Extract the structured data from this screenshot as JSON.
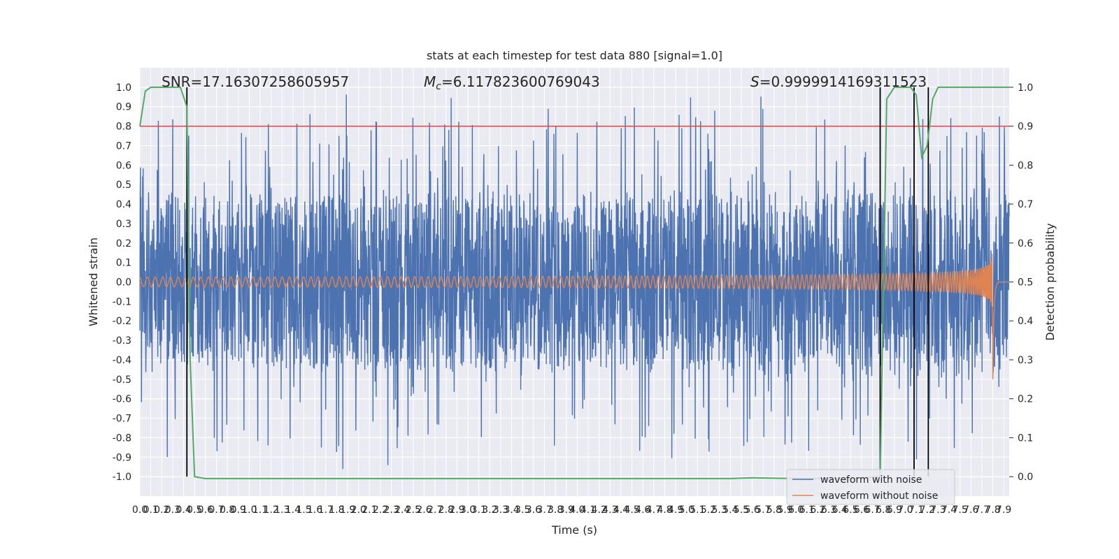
{
  "chart_data": {
    "type": "line",
    "title": "stats at each timestep for test data 880 [signal=1.0]",
    "xlabel": "Time (s)",
    "ylabel_left": "Whitened strain",
    "ylabel_right": "Detection probability",
    "xlim": [
      0.0,
      7.95
    ],
    "ylim_left": [
      -1.1,
      1.1
    ],
    "ylim_right": [
      -0.05,
      1.05
    ],
    "x_ticks": [
      "0.0",
      "0.1",
      "0.2",
      "0.3",
      "0.4",
      "0.5",
      "0.6",
      "0.7",
      "0.8",
      "0.9",
      "1.0",
      "1.1",
      "1.2",
      "1.3",
      "1.4",
      "1.5",
      "1.6",
      "1.7",
      "1.8",
      "1.9",
      "2.0",
      "2.1",
      "2.2",
      "2.3",
      "2.4",
      "2.5",
      "2.6",
      "2.7",
      "2.8",
      "2.9",
      "3.0",
      "3.1",
      "3.2",
      "3.3",
      "3.4",
      "3.5",
      "3.6",
      "3.7",
      "3.8",
      "3.9",
      "4.0",
      "4.1",
      "4.2",
      "4.3",
      "4.4",
      "4.5",
      "4.6",
      "4.7",
      "4.8",
      "4.9",
      "5.0",
      "5.1",
      "5.2",
      "5.3",
      "5.4",
      "5.5",
      "5.6",
      "5.7",
      "5.8",
      "5.9",
      "6.0",
      "6.1",
      "6.2",
      "6.3",
      "6.4",
      "6.5",
      "6.6",
      "6.7",
      "6.8",
      "6.9",
      "7.0",
      "7.1",
      "7.2",
      "7.3",
      "7.4",
      "7.5",
      "7.6",
      "7.7",
      "7.8",
      "7.9"
    ],
    "y_ticks_left": [
      "-1.0",
      "-0.9",
      "-0.8",
      "-0.7",
      "-0.6",
      "-0.5",
      "-0.4",
      "-0.3",
      "-0.2",
      "-0.1",
      "0.0",
      "0.1",
      "0.2",
      "0.3",
      "0.4",
      "0.5",
      "0.6",
      "0.7",
      "0.8",
      "0.9",
      "1.0"
    ],
    "y_ticks_right": [
      "0.0",
      "0.1",
      "0.2",
      "0.3",
      "0.4",
      "0.5",
      "0.6",
      "0.7",
      "0.8",
      "0.9",
      "1.0"
    ],
    "annotations": {
      "snr": "SNR=17.16307258605957",
      "mc_symbol": "M",
      "mc_subscript": "c",
      "mc_value": "=6.117823600769043",
      "s_symbol": "S",
      "s_value": "=0.9999914169311523"
    },
    "threshold": {
      "value": 0.9,
      "axis": "right",
      "color": "#c44e52"
    },
    "vertical_lines": [
      0.43,
      6.77,
      7.08,
      7.21
    ],
    "series": [
      {
        "name": "waveform with noise",
        "axis": "left",
        "color": "#4c72b0",
        "description_values": {
          "typical_range": [
            -0.45,
            0.5
          ],
          "peak_max": 1.0,
          "peak_min": -0.97
        }
      },
      {
        "name": "waveform without noise",
        "axis": "left",
        "color": "#dd8452",
        "chirp": {
          "x_start": 0.0,
          "x_merger": 7.8,
          "amp_start": 0.025,
          "amp_peak": 0.55
        }
      },
      {
        "name": "",
        "axis": "right",
        "color": "#55a868",
        "x": [
          0.0,
          0.05,
          0.1,
          0.2,
          0.3,
          0.37,
          0.43,
          0.46,
          0.5,
          0.6,
          1.0,
          2.0,
          3.0,
          4.0,
          5.0,
          5.4,
          5.6,
          6.0,
          6.5,
          6.77,
          6.83,
          6.9,
          7.0,
          7.05,
          7.1,
          7.15,
          7.2,
          7.25,
          7.3,
          7.4,
          7.6,
          7.8,
          7.95
        ],
        "y": [
          0.9,
          0.99,
          1.0,
          1.0,
          1.0,
          1.0,
          0.95,
          0.3,
          0.0,
          -0.005,
          -0.005,
          -0.005,
          -0.005,
          -0.005,
          -0.005,
          -0.005,
          -0.003,
          -0.005,
          -0.005,
          0.0,
          0.97,
          1.0,
          1.0,
          1.0,
          0.98,
          0.82,
          0.85,
          0.97,
          1.0,
          1.0,
          1.0,
          1.0,
          1.0
        ]
      }
    ],
    "legend": {
      "placement": "lower-right",
      "entries": [
        "waveform with noise",
        "waveform without noise"
      ]
    },
    "grid": true
  }
}
